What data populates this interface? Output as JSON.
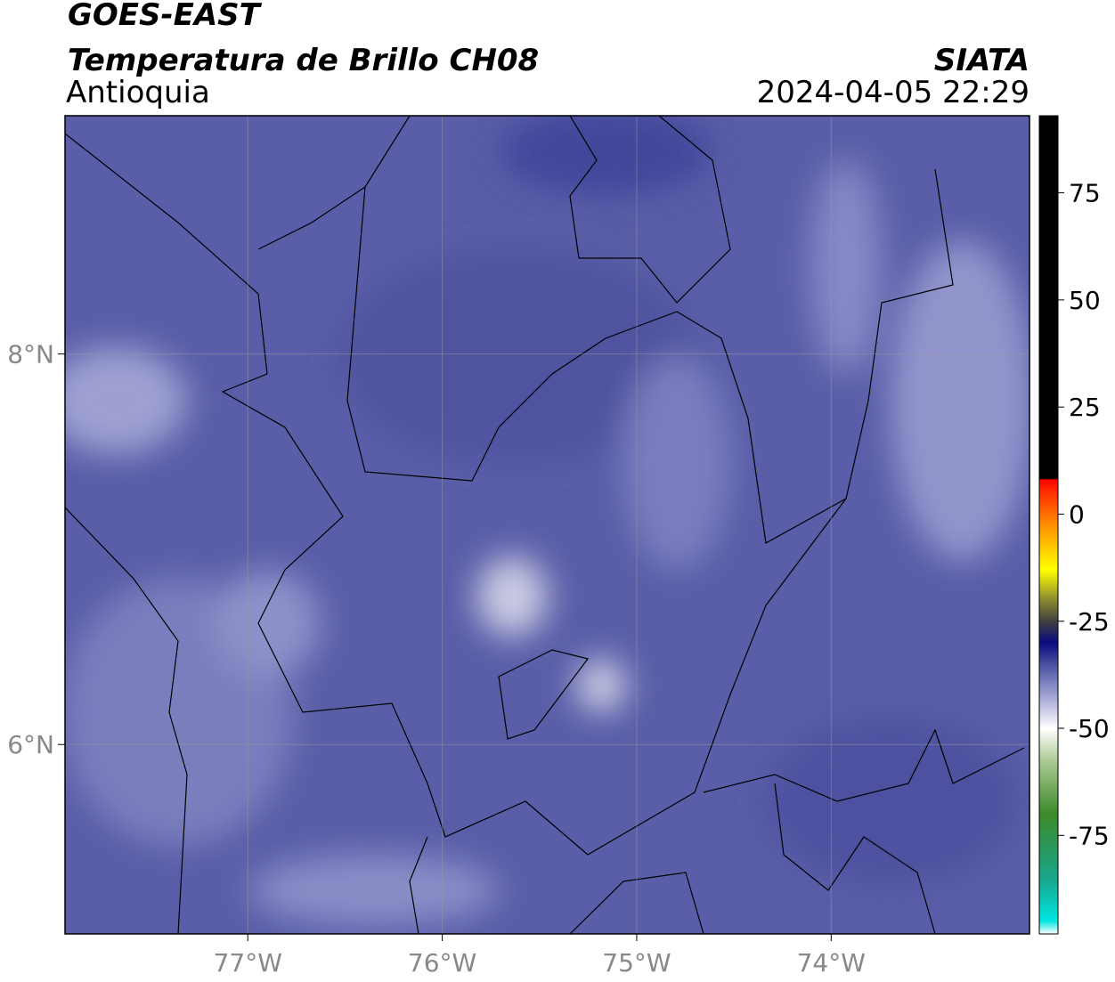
{
  "header": {
    "satellite": "GOES-EAST",
    "title": "Temperatura de Brillo CH08",
    "region": "Antioquia",
    "source": "SIATA",
    "datetime": "2024-04-05 22:29"
  },
  "map": {
    "xlim": [
      -77.94,
      -72.98
    ],
    "ylim": [
      5.03,
      9.22
    ],
    "xticks": [
      {
        "value": -77,
        "label": "77°W"
      },
      {
        "value": -76,
        "label": "76°W"
      },
      {
        "value": -75,
        "label": "75°W"
      },
      {
        "value": -74,
        "label": "74°W"
      }
    ],
    "yticks": [
      {
        "value": 8,
        "label": "8°N"
      },
      {
        "value": 6,
        "label": "6°N"
      }
    ],
    "grid": true
  },
  "colorbar": {
    "lim": [
      -98,
      93
    ],
    "ticks": [
      75,
      50,
      25,
      0,
      -25,
      -50,
      -75
    ],
    "stops": [
      {
        "value": -98,
        "color": "#ffffff"
      },
      {
        "value": -95,
        "color": "#00e5e0"
      },
      {
        "value": -85,
        "color": "#1aa68a"
      },
      {
        "value": -70,
        "color": "#3c8a2a"
      },
      {
        "value": -58,
        "color": "#a8c890"
      },
      {
        "value": -50,
        "color": "#ffffff"
      },
      {
        "value": -43,
        "color": "#a8aad6"
      },
      {
        "value": -35,
        "color": "#4a4fa0"
      },
      {
        "value": -30,
        "color": "#0a0a80"
      },
      {
        "value": -25,
        "color": "#404040"
      },
      {
        "value": -20,
        "color": "#8a8a30"
      },
      {
        "value": -13,
        "color": "#ffff00"
      },
      {
        "value": -4,
        "color": "#ffa000"
      },
      {
        "value": 5,
        "color": "#ff3000"
      },
      {
        "value": 8,
        "color": "#ff0000"
      },
      {
        "value": 8.3,
        "color": "#000000"
      },
      {
        "value": 93,
        "color": "#000000"
      }
    ]
  }
}
